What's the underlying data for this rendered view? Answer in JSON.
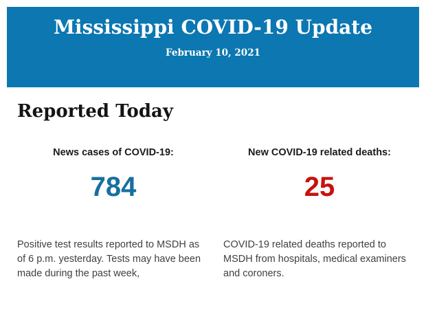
{
  "header": {
    "title": "Mississippi COVID-19 Update",
    "date": "February 10, 2021",
    "background_color": "#0c77b1",
    "text_color": "#ffffff"
  },
  "section": {
    "heading": "Reported Today"
  },
  "stats": [
    {
      "label": "News cases of COVID-19:",
      "value": "784",
      "value_color": "#176f9f",
      "description": "Positive test results reported to MSDH as of 6 p.m. yesterday. Tests may have been made during the past week,"
    },
    {
      "label": "New COVID-19 related deaths:",
      "value": "25",
      "value_color": "#c9100e",
      "description": "COVID-19 related deaths reported to MSDH from hospitals, medical examiners and coroners."
    }
  ]
}
